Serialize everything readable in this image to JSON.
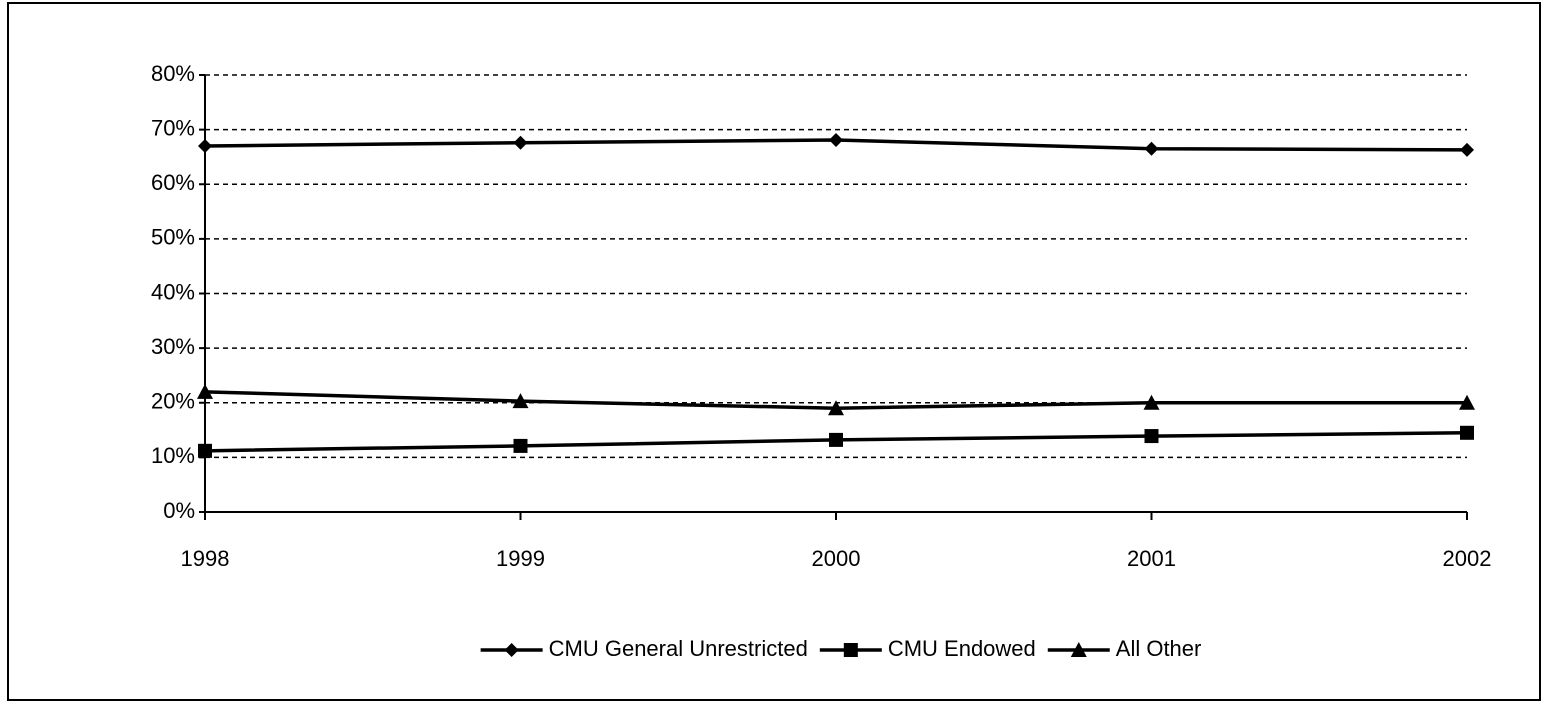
{
  "chart_data": {
    "type": "line",
    "categories": [
      "1998",
      "1999",
      "2000",
      "2001",
      "2002"
    ],
    "series": [
      {
        "name": "CMU General Unrestricted",
        "color": "#000000",
        "marker": "diamond",
        "values": [
          67.0,
          67.6,
          68.1,
          66.5,
          66.3
        ]
      },
      {
        "name": "CMU Endowed",
        "color": "#000000",
        "marker": "square",
        "values": [
          11.2,
          12.1,
          13.2,
          13.9,
          14.5
        ]
      },
      {
        "name": "All Other",
        "color": "#000000",
        "marker": "triangle",
        "values": [
          22.0,
          20.3,
          19.0,
          20.0,
          20.0
        ]
      }
    ],
    "ylim": [
      0,
      80
    ],
    "yticks": [
      {
        "value": 0,
        "label": "0%"
      },
      {
        "value": 10,
        "label": "10%"
      },
      {
        "value": 20,
        "label": "20%"
      },
      {
        "value": 30,
        "label": "30%"
      },
      {
        "value": 40,
        "label": "40%"
      },
      {
        "value": 50,
        "label": "50%"
      },
      {
        "value": 60,
        "label": "60%"
      },
      {
        "value": 70,
        "label": "70%"
      },
      {
        "value": 80,
        "label": "80%"
      }
    ],
    "grid": true,
    "legend": "bottom"
  }
}
